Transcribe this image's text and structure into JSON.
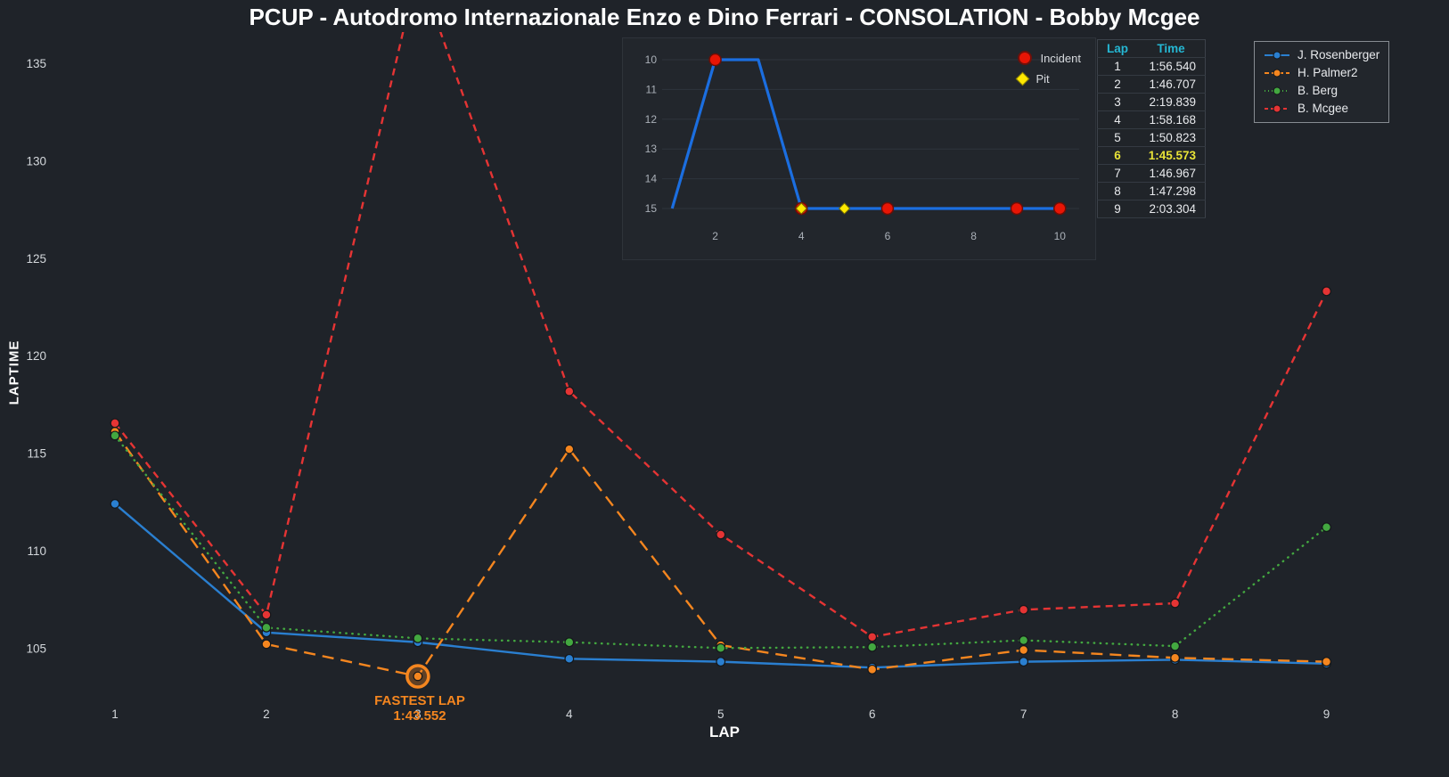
{
  "title": "PCUP - Autodromo Internazionale Enzo e Dino Ferrari - CONSOLATION - Bobby Mcgee",
  "chart_data": [
    {
      "type": "line",
      "title": "",
      "xlabel": "LAP",
      "ylabel": "LAPTIME",
      "x": [
        1,
        2,
        3,
        4,
        5,
        6,
        7,
        8,
        9
      ],
      "xticks": [
        1,
        2,
        3,
        4,
        5,
        6,
        7,
        8,
        9
      ],
      "yticks": [
        105,
        110,
        115,
        120,
        125,
        130,
        135
      ],
      "xlim": [
        0.8,
        9.45
      ],
      "ylim": [
        102.5,
        136.6
      ],
      "grid": false,
      "legend_position": "top-right",
      "series": [
        {
          "name": "J. Rosenberger",
          "color": "#2a7fd0",
          "dash": "solid",
          "values": [
            112.4,
            105.8,
            105.3,
            104.45,
            104.3,
            104.0,
            104.3,
            104.4,
            104.2
          ]
        },
        {
          "name": "H. Palmer2",
          "color": "#f5861f",
          "dash": "dashed",
          "values": [
            116.1,
            105.2,
            103.552,
            115.2,
            105.15,
            103.9,
            104.9,
            104.5,
            104.3
          ]
        },
        {
          "name": "B. Berg",
          "color": "#43a840",
          "dash": "dotted",
          "values": [
            115.9,
            106.05,
            105.5,
            105.3,
            105.0,
            105.05,
            105.4,
            105.1,
            111.2
          ]
        },
        {
          "name": "B. Mcgee",
          "color": "#e53434",
          "dash": "dashdot",
          "values": [
            116.54,
            106.707,
            139.839,
            118.168,
            110.823,
            105.573,
            106.967,
            107.298,
            123.304
          ]
        }
      ],
      "annotation": {
        "label": "FASTEST LAP",
        "value": "1:43.552",
        "lap": 3,
        "laptime": 103.552,
        "series": "H. Palmer2",
        "color": "#f5861f"
      }
    },
    {
      "type": "line",
      "name": "position-by-lap-inset",
      "x": [
        1,
        2,
        3,
        4,
        5,
        6,
        7,
        8,
        9,
        10
      ],
      "values": [
        15,
        10,
        10,
        15,
        15,
        15,
        15,
        15,
        15,
        15
      ],
      "xticks": [
        2,
        4,
        6,
        8,
        10
      ],
      "yticks": [
        10,
        11,
        12,
        13,
        14,
        15
      ],
      "xlim": [
        0.85,
        10.45
      ],
      "ylim": [
        9.7,
        15.45
      ],
      "y_reversed": true,
      "grid": true,
      "line_color": "#1b6ee0",
      "incidents": {
        "label": "Incident",
        "color": "#e81505",
        "laps": [
          2,
          4,
          6,
          9,
          10
        ],
        "positions": [
          10,
          15,
          15,
          15,
          15
        ]
      },
      "pits": {
        "label": "Pit",
        "color": "#ffe800",
        "laps": [
          4,
          5
        ],
        "positions": [
          15,
          15
        ]
      }
    }
  ],
  "lap_table": {
    "headers": [
      "Lap",
      "Time"
    ],
    "rows": [
      [
        "1",
        "1:56.540"
      ],
      [
        "2",
        "1:46.707"
      ],
      [
        "3",
        "2:19.839"
      ],
      [
        "4",
        "1:58.168"
      ],
      [
        "5",
        "1:50.823"
      ],
      [
        "6",
        "1:45.573"
      ],
      [
        "7",
        "1:46.967"
      ],
      [
        "8",
        "1:47.298"
      ],
      [
        "9",
        "2:03.304"
      ]
    ],
    "fastest_row_index": 5,
    "fastest_color": "#e8e337",
    "header_color": "#25b7d3"
  }
}
